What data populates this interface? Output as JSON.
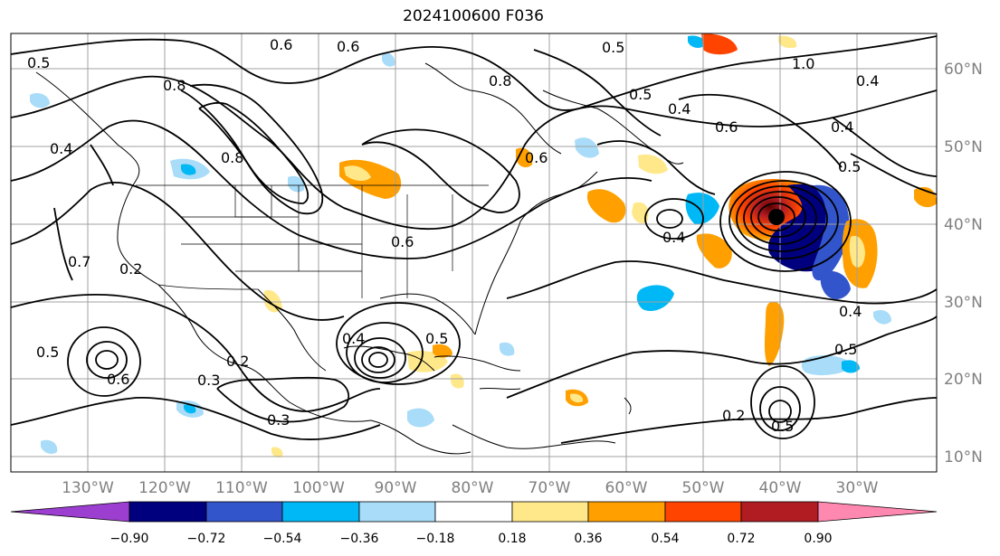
{
  "title": "2024100600 F036",
  "lon_labels": [
    "130°W",
    "120°W",
    "110°W",
    "100°W",
    "90°W",
    "80°W",
    "70°W",
    "60°W",
    "50°W",
    "40°W",
    "30°W"
  ],
  "lat_labels": [
    "60°N",
    "50°N",
    "40°N",
    "30°N",
    "20°N",
    "10°N"
  ],
  "colorbar": {
    "ticks": [
      "−0.90",
      "−0.72",
      "−0.54",
      "−0.36",
      "−0.18",
      "0.18",
      "0.36",
      "0.54",
      "0.72",
      "0.90"
    ],
    "colors": [
      "#9c3fd0",
      "#00007e",
      "#3355cc",
      "#00b8f5",
      "#a8dcf8",
      "#ffffff",
      "#ffe88a",
      "#ffa000",
      "#ff4400",
      "#b01c22",
      "#ff88b0"
    ]
  },
  "contour_labels": [
    "0.6",
    "0.6",
    "0.8",
    "1.0",
    "0.5",
    "0.4",
    "0.5",
    "0.4",
    "0.5",
    "0.6",
    "0.8",
    "0.8",
    "0.4",
    "0.6",
    "0.2",
    "0.4",
    "0.5",
    "0.6",
    "0.3",
    "0.3",
    "0.2",
    "0.5",
    "0.4",
    "0.4",
    "0.5",
    "0.4",
    "0.2",
    "0.5",
    "0.6",
    "0.7",
    "0.5"
  ],
  "anomaly_colors": {
    "orange": "#ffa000",
    "yellow": "#ffe88a",
    "red": "#ff4400",
    "darkred": "#b01c22",
    "blue": "#3355cc",
    "navy": "#00007e",
    "cyan": "#00b8f5",
    "lightblue": "#a8dcf8"
  }
}
